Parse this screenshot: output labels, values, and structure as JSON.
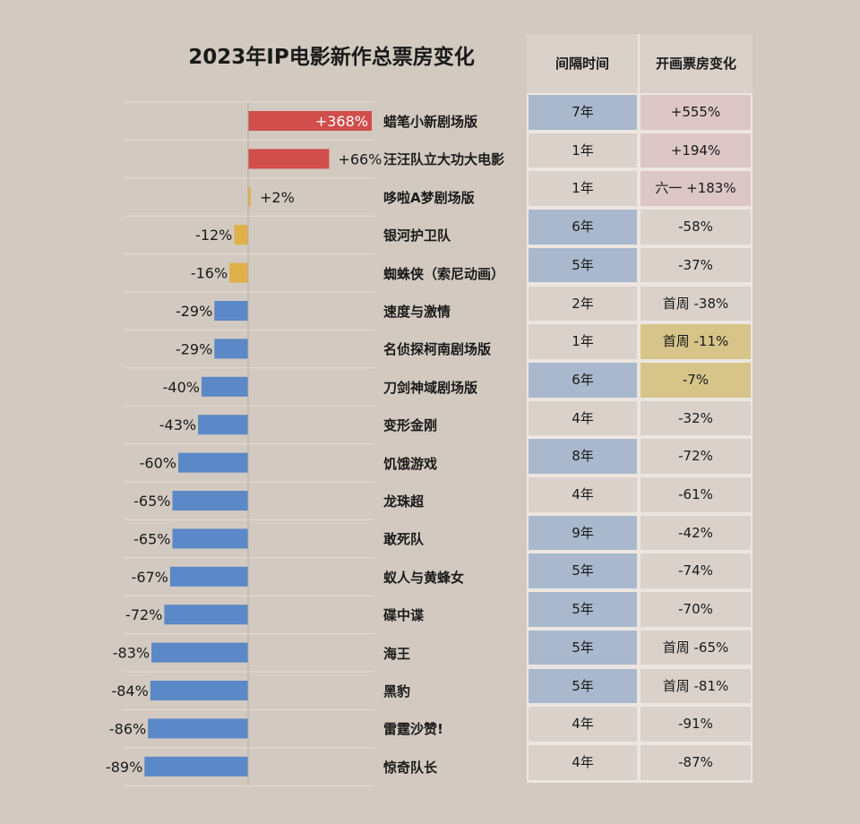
{
  "title": "2023年IP电影新作总票房变化",
  "table": {
    "headers": [
      "间隔时间",
      "开画票房变化"
    ]
  },
  "colors": {
    "bar_red": "#d04e4b",
    "bar_yellow": "#e0b14a",
    "bar_blue": "#5b88c6",
    "cell_blue": "#a9b8cc",
    "cell_pink": "#dcc6c6",
    "cell_yellow": "#d6c489",
    "cell_plain": "#d9d1ca"
  },
  "rows": [
    {
      "name": "蜡笔小新剧场版",
      "interval": "7年",
      "opening": "+555%",
      "interval_hl": "blue",
      "opening_hl": "pink"
    },
    {
      "name": "汪汪队立大功大电影",
      "interval": "1年",
      "opening": "+194%",
      "interval_hl": "plain",
      "opening_hl": "pink"
    },
    {
      "name": "哆啦A梦剧场版",
      "interval": "1年",
      "opening": "六一 +183%",
      "interval_hl": "plain",
      "opening_hl": "pink"
    },
    {
      "name": "银河护卫队",
      "interval": "6年",
      "opening": "-58%",
      "interval_hl": "blue",
      "opening_hl": "plain"
    },
    {
      "name": "蜘蛛侠（索尼动画）",
      "interval": "5年",
      "opening": "-37%",
      "interval_hl": "blue",
      "opening_hl": "plain"
    },
    {
      "name": "速度与激情",
      "interval": "2年",
      "opening": "首周 -38%",
      "interval_hl": "plain",
      "opening_hl": "plain"
    },
    {
      "name": "名侦探柯南剧场版",
      "interval": "1年",
      "opening": "首周 -11%",
      "interval_hl": "plain",
      "opening_hl": "yellow"
    },
    {
      "name": "刀剑神域剧场版",
      "interval": "6年",
      "opening": "-7%",
      "interval_hl": "blue",
      "opening_hl": "yellow"
    },
    {
      "name": "变形金刚",
      "interval": "4年",
      "opening": "-32%",
      "interval_hl": "plain",
      "opening_hl": "plain"
    },
    {
      "name": "饥饿游戏",
      "interval": "8年",
      "opening": "-72%",
      "interval_hl": "blue",
      "opening_hl": "plain"
    },
    {
      "name": "龙珠超",
      "interval": "4年",
      "opening": "-61%",
      "interval_hl": "plain",
      "opening_hl": "plain"
    },
    {
      "name": "敢死队",
      "interval": "9年",
      "opening": "-42%",
      "interval_hl": "blue",
      "opening_hl": "plain"
    },
    {
      "name": "蚁人与黄蜂女",
      "interval": "5年",
      "opening": "-74%",
      "interval_hl": "blue",
      "opening_hl": "plain"
    },
    {
      "name": "碟中谍",
      "interval": "5年",
      "opening": "-70%",
      "interval_hl": "blue",
      "opening_hl": "plain"
    },
    {
      "name": "海王",
      "interval": "5年",
      "opening": "首周 -65%",
      "interval_hl": "blue",
      "opening_hl": "plain"
    },
    {
      "name": "黑豹",
      "interval": "5年",
      "opening": "首周 -81%",
      "interval_hl": "blue",
      "opening_hl": "plain"
    },
    {
      "name": "雷霆沙赞!",
      "interval": "4年",
      "opening": "-91%",
      "interval_hl": "plain",
      "opening_hl": "plain"
    },
    {
      "name": "惊奇队长",
      "interval": "4年",
      "opening": "-87%",
      "interval_hl": "plain",
      "opening_hl": "plain"
    }
  ],
  "chart_data": {
    "type": "bar",
    "orientation": "horizontal",
    "title": "2023年IP电影新作总票房变化",
    "categories": [
      "蜡笔小新剧场版",
      "汪汪队立大功大电影",
      "哆啦A梦剧场版",
      "银河护卫队",
      "蜘蛛侠（索尼动画）",
      "速度与激情",
      "名侦探柯南剧场版",
      "刀剑神域剧场版",
      "变形金刚",
      "饥饿游戏",
      "龙珠超",
      "敢死队",
      "蚁人与黄蜂女",
      "碟中谍",
      "海王",
      "黑豹",
      "雷霆沙赞!",
      "惊奇队长"
    ],
    "values": [
      368,
      66,
      2,
      -12,
      -16,
      -29,
      -29,
      -40,
      -43,
      -60,
      -65,
      -65,
      -67,
      -72,
      -83,
      -84,
      -86,
      -89
    ],
    "data_labels": [
      "+368%",
      "+66%",
      "+2%",
      "-12%",
      "-16%",
      "-29%",
      "-29%",
      "-40%",
      "-43%",
      "-60%",
      "-65%",
      "-65%",
      "-67%",
      "-72%",
      "-83%",
      "-84%",
      "-86%",
      "-89%"
    ],
    "bar_colors": [
      "red",
      "red",
      "yellow",
      "yellow",
      "yellow",
      "blue",
      "blue",
      "blue",
      "blue",
      "blue",
      "blue",
      "blue",
      "blue",
      "blue",
      "blue",
      "blue",
      "blue",
      "blue"
    ],
    "x_unit": "%",
    "xlim": [
      -100,
      368
    ],
    "grid": false,
    "legend": "none"
  }
}
